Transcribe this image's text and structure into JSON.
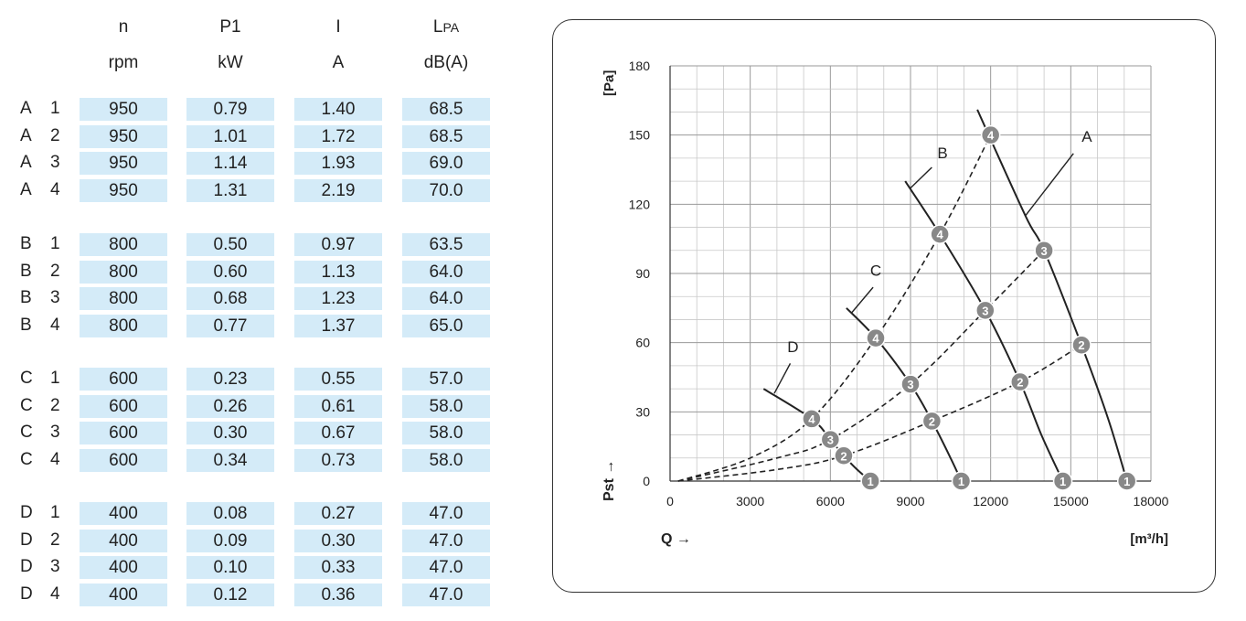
{
  "table": {
    "headers": [
      {
        "symbol": "n",
        "unit": "rpm"
      },
      {
        "symbol": "P1",
        "unit": "kW"
      },
      {
        "symbol": "I",
        "unit": "A"
      },
      {
        "symbol": "L",
        "symbol_sub": "PA",
        "unit": "dB(A)"
      }
    ],
    "groups": [
      {
        "letter": "A",
        "rows": [
          {
            "step": "1",
            "values": [
              "950",
              "0.79",
              "1.40",
              "68.5"
            ]
          },
          {
            "step": "2",
            "values": [
              "950",
              "1.01",
              "1.72",
              "68.5"
            ]
          },
          {
            "step": "3",
            "values": [
              "950",
              "1.14",
              "1.93",
              "69.0"
            ]
          },
          {
            "step": "4",
            "values": [
              "950",
              "1.31",
              "2.19",
              "70.0"
            ]
          }
        ]
      },
      {
        "letter": "B",
        "rows": [
          {
            "step": "1",
            "values": [
              "800",
              "0.50",
              "0.97",
              "63.5"
            ]
          },
          {
            "step": "2",
            "values": [
              "800",
              "0.60",
              "1.13",
              "64.0"
            ]
          },
          {
            "step": "3",
            "values": [
              "800",
              "0.68",
              "1.23",
              "64.0"
            ]
          },
          {
            "step": "4",
            "values": [
              "800",
              "0.77",
              "1.37",
              "65.0"
            ]
          }
        ]
      },
      {
        "letter": "C",
        "rows": [
          {
            "step": "1",
            "values": [
              "600",
              "0.23",
              "0.55",
              "57.0"
            ]
          },
          {
            "step": "2",
            "values": [
              "600",
              "0.26",
              "0.61",
              "58.0"
            ]
          },
          {
            "step": "3",
            "values": [
              "600",
              "0.30",
              "0.67",
              "58.0"
            ]
          },
          {
            "step": "4",
            "values": [
              "600",
              "0.34",
              "0.73",
              "58.0"
            ]
          }
        ]
      },
      {
        "letter": "D",
        "rows": [
          {
            "step": "1",
            "values": [
              "400",
              "0.08",
              "0.27",
              "47.0"
            ]
          },
          {
            "step": "2",
            "values": [
              "400",
              "0.09",
              "0.30",
              "47.0"
            ]
          },
          {
            "step": "3",
            "values": [
              "400",
              "0.10",
              "0.33",
              "47.0"
            ]
          },
          {
            "step": "4",
            "values": [
              "400",
              "0.12",
              "0.36",
              "47.0"
            ]
          }
        ]
      }
    ],
    "cell_color": "#d4ebf8"
  },
  "chart_data": {
    "type": "line",
    "xlabel": "Q →",
    "xunit": "[m³/h]",
    "ylabel": "Pst →",
    "yunit": "[Pa]",
    "xlim": [
      0,
      18000
    ],
    "ylim": [
      0,
      180
    ],
    "xticks": [
      0,
      3000,
      6000,
      9000,
      12000,
      15000,
      18000
    ],
    "yticks": [
      0,
      30,
      60,
      90,
      120,
      150,
      180
    ],
    "grid": true,
    "fan_curves": [
      {
        "name": "A",
        "points": [
          [
            11500,
            161
          ],
          [
            13300,
            115
          ],
          [
            14000,
            100
          ],
          [
            15400,
            59
          ],
          [
            16400,
            27
          ],
          [
            17100,
            0
          ]
        ]
      },
      {
        "name": "B",
        "points": [
          [
            8800,
            130
          ],
          [
            10100,
            107
          ],
          [
            11800,
            74
          ],
          [
            13100,
            43
          ],
          [
            13900,
            20
          ],
          [
            14700,
            0
          ]
        ]
      },
      {
        "name": "C",
        "points": [
          [
            6600,
            75
          ],
          [
            7700,
            62
          ],
          [
            9000,
            42
          ],
          [
            9800,
            26
          ],
          [
            10500,
            10
          ],
          [
            10900,
            0
          ]
        ]
      },
      {
        "name": "D",
        "points": [
          [
            3500,
            40
          ],
          [
            5300,
            27
          ],
          [
            6000,
            18
          ],
          [
            6500,
            11
          ],
          [
            7000,
            5
          ],
          [
            7500,
            0
          ]
        ]
      }
    ],
    "system_curves": [
      {
        "step": "4",
        "points": [
          [
            300,
            0
          ],
          [
            3000,
            10
          ],
          [
            5300,
            27
          ],
          [
            7700,
            62
          ],
          [
            10100,
            107
          ],
          [
            12000,
            150
          ]
        ]
      },
      {
        "step": "3",
        "points": [
          [
            300,
            0
          ],
          [
            4000,
            10
          ],
          [
            6000,
            18
          ],
          [
            9000,
            42
          ],
          [
            11800,
            74
          ],
          [
            14000,
            100
          ]
        ]
      },
      {
        "step": "2",
        "points": [
          [
            300,
            0
          ],
          [
            4000,
            5
          ],
          [
            6500,
            11
          ],
          [
            9800,
            26
          ],
          [
            13100,
            43
          ],
          [
            15400,
            59
          ]
        ]
      }
    ],
    "markers": [
      {
        "label": "4",
        "x": 12000,
        "y": 150
      },
      {
        "label": "4",
        "x": 10100,
        "y": 107
      },
      {
        "label": "4",
        "x": 7700,
        "y": 62
      },
      {
        "label": "4",
        "x": 5300,
        "y": 27
      },
      {
        "label": "3",
        "x": 14000,
        "y": 100
      },
      {
        "label": "3",
        "x": 11800,
        "y": 74
      },
      {
        "label": "3",
        "x": 9000,
        "y": 42
      },
      {
        "label": "3",
        "x": 6000,
        "y": 18
      },
      {
        "label": "2",
        "x": 15400,
        "y": 59
      },
      {
        "label": "2",
        "x": 13100,
        "y": 43
      },
      {
        "label": "2",
        "x": 9800,
        "y": 26
      },
      {
        "label": "2",
        "x": 6500,
        "y": 11
      },
      {
        "label": "1",
        "x": 17100,
        "y": 0
      },
      {
        "label": "1",
        "x": 14700,
        "y": 0
      },
      {
        "label": "1",
        "x": 10900,
        "y": 0
      },
      {
        "label": "1",
        "x": 7500,
        "y": 0
      }
    ],
    "curve_labels": [
      {
        "text": "A",
        "x": 15600,
        "y": 147,
        "lx1": 13300,
        "ly1": 115,
        "lx2": 15100,
        "ly2": 142
      },
      {
        "text": "B",
        "x": 10200,
        "y": 140,
        "lx1": 9000,
        "ly1": 127,
        "lx2": 9800,
        "ly2": 136
      },
      {
        "text": "C",
        "x": 7700,
        "y": 89,
        "lx1": 6800,
        "ly1": 73,
        "lx2": 7600,
        "ly2": 84
      },
      {
        "text": "D",
        "x": 4600,
        "y": 56,
        "lx1": 3900,
        "ly1": 38,
        "lx2": 4500,
        "ly2": 51
      }
    ],
    "marker_color": "#888888"
  }
}
